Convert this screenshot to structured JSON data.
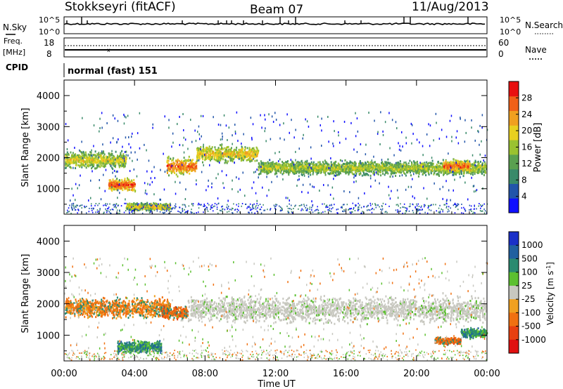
{
  "header": {
    "station": "Stokkseyri (fitACF)",
    "beam": "Beam 07",
    "date": "11/Aug/2013"
  },
  "strip_labels": {
    "nsky": "N.Sky",
    "freq": "Freq.",
    "freq_unit": "[MHz]",
    "cpid": "CPID",
    "nsearch": "N.Search",
    "nave": "Nave",
    "cpid_value": "normal (fast) 151"
  },
  "strip_ticks": {
    "noise_left": [
      "10^5",
      "10^0"
    ],
    "noise_right": [
      "10^5",
      "10^0"
    ],
    "freq_left": [
      "18",
      "8"
    ],
    "freq_right": [
      "60",
      "0"
    ]
  },
  "chart_data": [
    {
      "type": "heatmap",
      "name": "power",
      "title": "",
      "xlabel": "",
      "ylabel": "Slant Range [km]",
      "xlim": [
        "00:00",
        "24:00"
      ],
      "ylim": [
        180,
        4500
      ],
      "x_ticks": [
        "00:00",
        "04:00",
        "08:00",
        "12:00",
        "16:00",
        "20:00",
        "00:00"
      ],
      "y_ticks": [
        1000,
        2000,
        3000,
        4000
      ],
      "colorbar": {
        "label": "Power [dB]",
        "range": [
          0,
          32
        ],
        "ticks": [
          4,
          8,
          12,
          16,
          20,
          24,
          28
        ],
        "colors": [
          "#1010ff",
          "#2255aa",
          "#3a8a6a",
          "#5aa050",
          "#9ac230",
          "#e8d020",
          "#f0a020",
          "#f06018",
          "#e81010"
        ]
      },
      "features": [
        {
          "time_h": [
            0.0,
            3.5
          ],
          "range_km": [
            1600,
            2300
          ],
          "level_db": 18
        },
        {
          "time_h": [
            2.5,
            4.0
          ],
          "range_km": [
            900,
            1400
          ],
          "level_db": 28
        },
        {
          "time_h": [
            3.5,
            6.0
          ],
          "range_km": [
            300,
            600
          ],
          "level_db": 20
        },
        {
          "time_h": [
            5.8,
            7.5
          ],
          "range_km": [
            1400,
            2100
          ],
          "level_db": 26
        },
        {
          "time_h": [
            7.5,
            11.0
          ],
          "range_km": [
            1800,
            2500
          ],
          "level_db": 20
        },
        {
          "time_h": [
            11.0,
            24.0
          ],
          "range_km": [
            1400,
            2000
          ],
          "level_db": 16
        },
        {
          "time_h": [
            21.5,
            23.0
          ],
          "range_km": [
            1500,
            2000
          ],
          "level_db": 26
        }
      ]
    },
    {
      "type": "heatmap",
      "name": "velocity",
      "title": "",
      "xlabel": "Time UT",
      "ylabel": "Slant Range [km]",
      "xlim": [
        "00:00",
        "24:00"
      ],
      "ylim": [
        180,
        4500
      ],
      "x_ticks": [
        "00:00",
        "04:00",
        "08:00",
        "12:00",
        "16:00",
        "20:00",
        "00:00"
      ],
      "y_ticks": [
        1000,
        2000,
        3000,
        4000
      ],
      "colorbar": {
        "label": "Velocity [m s-1]",
        "ticks": [
          "1000",
          "500",
          "100",
          "25",
          "-25",
          "-100",
          "-500",
          "-1000"
        ],
        "colors": [
          "#1a30c8",
          "#2060a0",
          "#2a8a70",
          "#5cc030",
          "#c8c8c0",
          "#f0a020",
          "#f07010",
          "#e84010",
          "#e01010"
        ]
      },
      "features": [
        {
          "time_h": [
            0.0,
            6.0
          ],
          "range_km": [
            1500,
            2300
          ],
          "velocity": "-100 to -500"
        },
        {
          "time_h": [
            3.0,
            5.5
          ],
          "range_km": [
            400,
            900
          ],
          "velocity": "100 to 500"
        },
        {
          "time_h": [
            5.5,
            7.0
          ],
          "range_km": [
            1500,
            2000
          ],
          "velocity": "-500"
        },
        {
          "time_h": [
            7.0,
            24.0
          ],
          "range_km": [
            1300,
            2400
          ],
          "velocity": "-25 to 25"
        },
        {
          "time_h": [
            21.0,
            22.5
          ],
          "range_km": [
            700,
            1000
          ],
          "velocity": "-500"
        },
        {
          "time_h": [
            22.5,
            24.0
          ],
          "range_km": [
            900,
            1300
          ],
          "velocity": "100 to 500"
        }
      ]
    }
  ]
}
